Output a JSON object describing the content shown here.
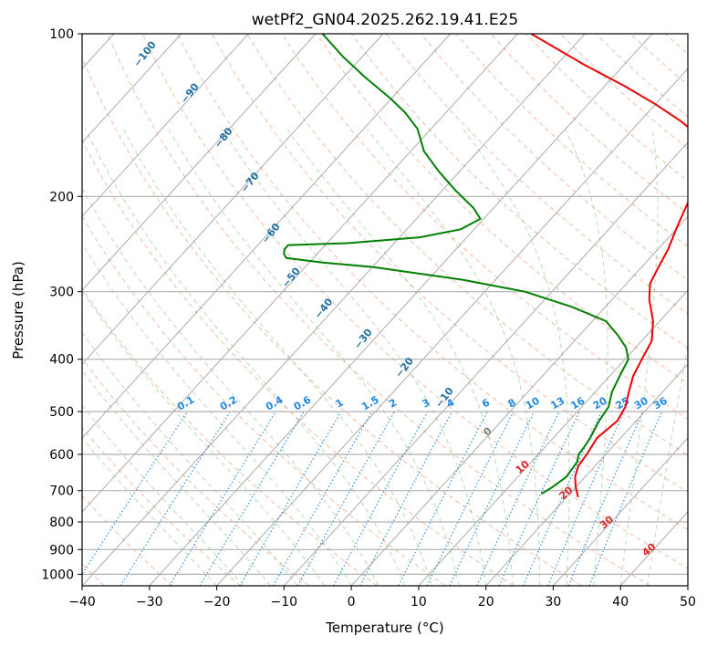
{
  "chart_data": {
    "type": "line",
    "title": "wetPf2_GN04.2025.262.19.41.E25",
    "xlabel": "Temperature (°C)",
    "ylabel": "Pressure (hPa)",
    "xlim": [
      -40,
      50
    ],
    "ylim": [
      1050,
      100
    ],
    "y_scale": "log",
    "x_ticks": [
      "−40",
      "−30",
      "−20",
      "−10",
      "0",
      "10",
      "20",
      "30",
      "40",
      "50"
    ],
    "x_tick_values": [
      -40,
      -30,
      -20,
      -10,
      0,
      10,
      20,
      30,
      40,
      50
    ],
    "y_ticks": [
      "100",
      "200",
      "300",
      "400",
      "500",
      "600",
      "700",
      "800",
      "900",
      "1000"
    ],
    "y_tick_values": [
      100,
      200,
      300,
      400,
      500,
      600,
      700,
      800,
      900,
      1000
    ],
    "grid": true,
    "skew_degrees": 45,
    "colors": {
      "temperature": "#ee0000",
      "dewpoint": "#008000",
      "dry_adiabat": "#f4a582",
      "moist_adiabat": "#8bc48a",
      "mixing_ratio": "#1e88e5",
      "isotherm": "#7f7f7f",
      "dry_adiabat_label": "#1f6fa3",
      "moist_adiabat_label": "#d62728",
      "zero_label": "#7f7f7f"
    },
    "series": [
      {
        "key": "temperature",
        "points": [
          [
            21.7,
            720
          ],
          [
            20.0,
            690
          ],
          [
            18.5,
            660
          ],
          [
            17.5,
            630
          ],
          [
            17.2,
            600
          ],
          [
            16.5,
            560
          ],
          [
            17.2,
            520
          ],
          [
            16.5,
            490
          ],
          [
            15.0,
            460
          ],
          [
            13.5,
            430
          ],
          [
            12.5,
            400
          ],
          [
            11.5,
            370
          ],
          [
            9.0,
            340
          ],
          [
            5.5,
            310
          ],
          [
            3.5,
            290
          ],
          [
            2.5,
            270
          ],
          [
            1.5,
            250
          ],
          [
            0.0,
            230
          ],
          [
            -1.5,
            210
          ],
          [
            -3.0,
            190
          ],
          [
            -5.5,
            170
          ],
          [
            -9.0,
            155
          ],
          [
            -14.0,
            145
          ],
          [
            -20.0,
            135
          ],
          [
            -27.0,
            125
          ],
          [
            -36.0,
            114
          ],
          [
            -48.0,
            100
          ]
        ]
      },
      {
        "key": "dewpoint",
        "points": [
          [
            15.8,
            710
          ],
          [
            16.5,
            690
          ],
          [
            17.2,
            660
          ],
          [
            17.0,
            640
          ],
          [
            16.8,
            620
          ],
          [
            16.0,
            600
          ],
          [
            15.8,
            580
          ],
          [
            15.5,
            560
          ],
          [
            15.0,
            540
          ],
          [
            14.5,
            520
          ],
          [
            14.0,
            490
          ],
          [
            12.5,
            460
          ],
          [
            11.5,
            430
          ],
          [
            10.5,
            400
          ],
          [
            8.5,
            380
          ],
          [
            5.5,
            360
          ],
          [
            2.0,
            340
          ],
          [
            -5.0,
            320
          ],
          [
            -14.0,
            300
          ],
          [
            -25.0,
            285
          ],
          [
            -40.0,
            270
          ],
          [
            -48.0,
            265
          ],
          [
            -54.0,
            260
          ],
          [
            -55.0,
            255
          ],
          [
            -55.5,
            250
          ],
          [
            -55.5,
            246
          ],
          [
            -47.0,
            244
          ],
          [
            -37.0,
            238
          ],
          [
            -32.0,
            230
          ],
          [
            -30.5,
            220
          ],
          [
            -33.0,
            210
          ],
          [
            -38.0,
            195
          ],
          [
            -43.0,
            180
          ],
          [
            -48.0,
            165
          ],
          [
            -52.0,
            150
          ],
          [
            -56.0,
            140
          ],
          [
            -60.0,
            132
          ],
          [
            -67.0,
            120
          ],
          [
            -73.0,
            110
          ],
          [
            -79.0,
            100
          ]
        ]
      }
    ],
    "dry_adiabat_labels": [
      "−100",
      "−90",
      "−80",
      "−70",
      "−60",
      "−50",
      "−40",
      "−30",
      "−20",
      "−10"
    ],
    "dry_adiabat_label_positions": [
      [
        -102,
        110
      ],
      [
        -90,
        130
      ],
      [
        -79,
        157
      ],
      [
        -69,
        190
      ],
      [
        -59,
        236
      ],
      [
        -50,
        285
      ],
      [
        -41,
        325
      ],
      [
        -31,
        370
      ],
      [
        -21,
        418
      ],
      [
        -11,
        475
      ]
    ],
    "moist_adiabat_labels": [
      "0",
      "10",
      "20",
      "30",
      "40"
    ],
    "moist_adiabat_label_positions": [
      [
        0,
        550
      ],
      [
        10,
        640
      ],
      [
        20,
        715
      ],
      [
        30,
        810
      ],
      [
        40,
        910
      ]
    ],
    "mixing_ratio_labels": [
      "0.1",
      "0.2",
      "0.4",
      "0.6",
      "1",
      "1.5",
      "2",
      "3",
      "4",
      "6",
      "8",
      "10",
      "13",
      "16",
      "20",
      "25",
      "30",
      "36"
    ],
    "mixing_ratio_values": [
      0.1,
      0.2,
      0.4,
      0.6,
      1,
      1.5,
      2,
      3,
      4,
      6,
      8,
      10,
      13,
      16,
      20,
      25,
      30,
      36
    ]
  }
}
